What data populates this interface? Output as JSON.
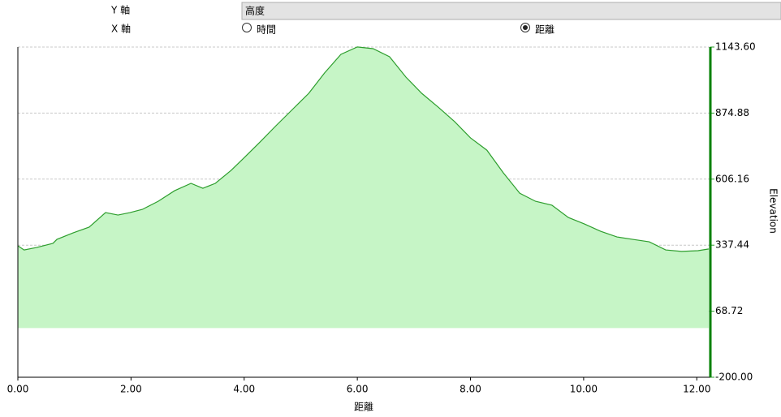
{
  "controls": {
    "y_axis_label": "Y 軸",
    "y_axis_value": "高度",
    "x_axis_label": "X 軸",
    "x_options": [
      "時間",
      "距離"
    ],
    "x_selected": "距離"
  },
  "chart_data": {
    "type": "area",
    "x_label": "距離",
    "y_label": "Elevation",
    "color": "#2e9e2e",
    "fill": "#c6f5c6",
    "grid": true,
    "y_axis_side": "right",
    "x": [
      0.0,
      0.11,
      0.33,
      0.62,
      0.69,
      0.98,
      1.26,
      1.55,
      1.77,
      1.98,
      2.2,
      2.48,
      2.77,
      3.06,
      3.27,
      3.49,
      3.77,
      3.99,
      4.28,
      4.56,
      4.85,
      5.14,
      5.42,
      5.71,
      6.0,
      6.28,
      6.57,
      6.86,
      7.14,
      7.43,
      7.72,
      8.0,
      8.29,
      8.58,
      8.87,
      9.15,
      9.44,
      9.73,
      10.01,
      10.3,
      10.59,
      10.87,
      11.16,
      11.45,
      11.73,
      12.02,
      12.21
    ],
    "values": [
      335,
      318,
      328,
      345,
      361,
      388,
      411,
      470,
      460,
      470,
      483,
      516,
      559,
      589,
      569,
      589,
      642,
      691,
      757,
      823,
      889,
      955,
      1038,
      1114,
      1144,
      1137,
      1104,
      1021,
      955,
      899,
      840,
      774,
      724,
      632,
      549,
      516,
      500,
      450,
      424,
      394,
      371,
      361,
      351,
      318,
      312,
      315,
      322
    ],
    "xlim": [
      0,
      12.24
    ],
    "xticks": [
      {
        "value": 0,
        "label": "0.00"
      },
      {
        "value": 2,
        "label": "2.00"
      },
      {
        "value": 4,
        "label": "4.00"
      },
      {
        "value": 6,
        "label": "6.00"
      },
      {
        "value": 8,
        "label": "8.00"
      },
      {
        "value": 10,
        "label": "10.00"
      },
      {
        "value": 12,
        "label": "12.00"
      }
    ],
    "ylim": [
      -200,
      1143.6
    ],
    "yticks": [
      {
        "value": -200,
        "label": "-200.00"
      },
      68.72,
      337.44,
      606.16,
      874.88,
      {
        "value": 1143.6,
        "label": "1143.60"
      }
    ]
  }
}
